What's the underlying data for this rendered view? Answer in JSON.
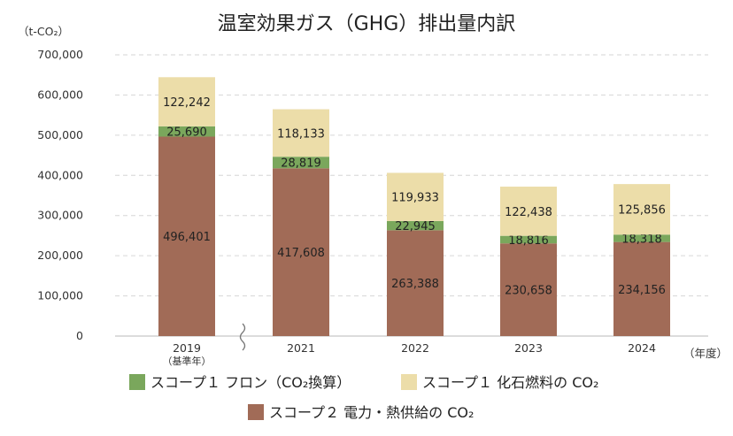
{
  "chart_data": {
    "type": "bar",
    "stacked": true,
    "title": "温室効果ガス（GHG）排出量内訳",
    "ylabel": "（t-CO₂）",
    "xlabel": "（年度）",
    "ylim": [
      0,
      700000
    ],
    "yticks": [
      "0",
      "100,000",
      "200,000",
      "300,000",
      "400,000",
      "500,000",
      "600,000",
      "700,000"
    ],
    "categories": [
      "2019",
      "2021",
      "2022",
      "2023",
      "2024"
    ],
    "category_sublabels": [
      "（基準年）",
      "",
      "",
      "",
      ""
    ],
    "axis_break_between": [
      0,
      1
    ],
    "grid": true,
    "legend_position": "bottom",
    "series": [
      {
        "name": "スコープ２ 電力・熱供給の CO₂",
        "color": "#a16b57",
        "values": [
          496401,
          417608,
          263388,
          230658,
          234156
        ],
        "labels": [
          "496,401",
          "417,608",
          "263,388",
          "230,658",
          "234,156"
        ]
      },
      {
        "name": "スコープ１ フロン（CO₂換算）",
        "color": "#7aa75c",
        "values": [
          25690,
          28819,
          22945,
          18816,
          18318
        ],
        "labels": [
          "25,690",
          "28,819",
          "22,945",
          "18,816",
          "18,318"
        ]
      },
      {
        "name": "スコープ１ 化石燃料の CO₂",
        "color": "#ecdda9",
        "values": [
          122242,
          118133,
          119933,
          122438,
          125856
        ],
        "labels": [
          "122,242",
          "118,133",
          "119,933",
          "122,438",
          "125,856"
        ]
      }
    ],
    "legend_order": [
      1,
      2,
      0
    ]
  }
}
